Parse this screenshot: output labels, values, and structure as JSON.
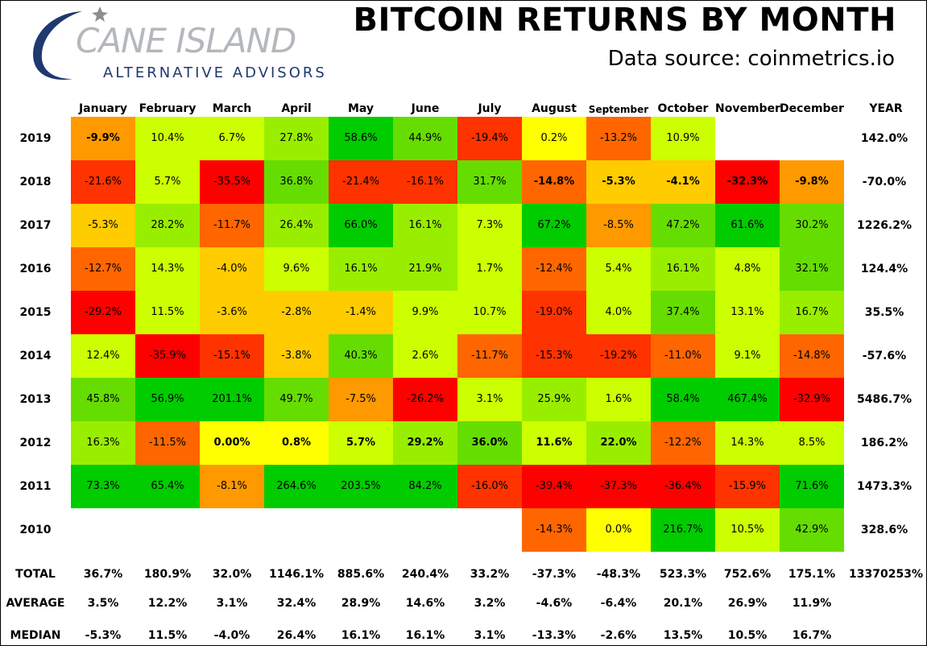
{
  "logo": {
    "name": "CANE ISLAND",
    "tagline": "ALTERNATIVE ADVISORS"
  },
  "title": "BITCOIN RETURNS BY MONTH",
  "subtitle": "Data source: coinmetrics.io",
  "chart_data": {
    "type": "heatmap",
    "columns": [
      "January",
      "February",
      "March",
      "April",
      "May",
      "June",
      "July",
      "August",
      "September",
      "October",
      "November",
      "December"
    ],
    "year_header": "YEAR",
    "rows": [
      {
        "label": "2019",
        "cells": [
          "-9.9%",
          "10.4%",
          "6.7%",
          "27.8%",
          "58.6%",
          "44.9%",
          "-19.4%",
          "0.2%",
          "-13.2%",
          "10.9%",
          null,
          null
        ],
        "values": [
          -9.9,
          10.4,
          6.7,
          27.8,
          58.6,
          44.9,
          -19.4,
          0.2,
          -13.2,
          10.9,
          null,
          null
        ],
        "bold": [
          true,
          false,
          false,
          false,
          false,
          false,
          false,
          false,
          false,
          false,
          false,
          false
        ],
        "year": "142.0%"
      },
      {
        "label": "2018",
        "cells": [
          "-21.6%",
          "5.7%",
          "-35.5%",
          "36.8%",
          "-21.4%",
          "-16.1%",
          "31.7%",
          "-14.8%",
          "-5.3%",
          "-4.1%",
          "-32.3%",
          "-9.8%"
        ],
        "values": [
          -21.6,
          5.7,
          -35.5,
          36.8,
          -21.4,
          -16.1,
          31.7,
          -14.8,
          -5.3,
          -4.1,
          -32.3,
          -9.8
        ],
        "bold": [
          false,
          false,
          false,
          false,
          false,
          false,
          false,
          true,
          true,
          true,
          true,
          true
        ],
        "year": "-70.0%"
      },
      {
        "label": "2017",
        "cells": [
          "-5.3%",
          "28.2%",
          "-11.7%",
          "26.4%",
          "66.0%",
          "16.1%",
          "7.3%",
          "67.2%",
          "-8.5%",
          "47.2%",
          "61.6%",
          "30.2%"
        ],
        "values": [
          -5.3,
          28.2,
          -11.7,
          26.4,
          66.0,
          16.1,
          7.3,
          67.2,
          -8.5,
          47.2,
          61.6,
          30.2
        ],
        "bold": [
          false,
          false,
          false,
          false,
          false,
          false,
          false,
          false,
          false,
          false,
          false,
          false
        ],
        "year": "1226.2%"
      },
      {
        "label": "2016",
        "cells": [
          "-12.7%",
          "14.3%",
          "-4.0%",
          "9.6%",
          "16.1%",
          "21.9%",
          "1.7%",
          "-12.4%",
          "5.4%",
          "16.1%",
          "4.8%",
          "32.1%"
        ],
        "values": [
          -12.7,
          14.3,
          -4.0,
          9.6,
          16.1,
          21.9,
          1.7,
          -12.4,
          5.4,
          16.1,
          4.8,
          32.1
        ],
        "bold": [
          false,
          false,
          false,
          false,
          false,
          false,
          false,
          false,
          false,
          false,
          false,
          false
        ],
        "year": "124.4%"
      },
      {
        "label": "2015",
        "cells": [
          "-29.2%",
          "11.5%",
          "-3.6%",
          "-2.8%",
          "-1.4%",
          "9.9%",
          "10.7%",
          "-19.0%",
          "4.0%",
          "37.4%",
          "13.1%",
          "16.7%"
        ],
        "values": [
          -29.2,
          11.5,
          -3.6,
          -2.8,
          -1.4,
          9.9,
          10.7,
          -19.0,
          4.0,
          37.4,
          13.1,
          16.7
        ],
        "bold": [
          false,
          false,
          false,
          false,
          false,
          false,
          false,
          false,
          false,
          false,
          false,
          false
        ],
        "year": "35.5%"
      },
      {
        "label": "2014",
        "cells": [
          "12.4%",
          "-35.9%",
          "-15.1%",
          "-3.8%",
          "40.3%",
          "2.6%",
          "-11.7%",
          "-15.3%",
          "-19.2%",
          "-11.0%",
          "9.1%",
          "-14.8%"
        ],
        "values": [
          12.4,
          -35.9,
          -15.1,
          -3.8,
          40.3,
          2.6,
          -11.7,
          -15.3,
          -19.2,
          -11.0,
          9.1,
          -14.8
        ],
        "bold": [
          false,
          false,
          false,
          false,
          false,
          false,
          false,
          false,
          false,
          false,
          false,
          false
        ],
        "year": "-57.6%"
      },
      {
        "label": "2013",
        "cells": [
          "45.8%",
          "56.9%",
          "201.1%",
          "49.7%",
          "-7.5%",
          "-26.2%",
          "3.1%",
          "25.9%",
          "1.6%",
          "58.4%",
          "467.4%",
          "-32.9%"
        ],
        "values": [
          45.8,
          56.9,
          201.1,
          49.7,
          -7.5,
          -26.2,
          3.1,
          25.9,
          1.6,
          58.4,
          467.4,
          -32.9
        ],
        "bold": [
          false,
          false,
          false,
          false,
          false,
          false,
          false,
          false,
          false,
          false,
          false,
          false
        ],
        "year": "5486.7%"
      },
      {
        "label": "2012",
        "cells": [
          "16.3%",
          "-11.5%",
          "0.00%",
          "0.8%",
          "5.7%",
          "29.2%",
          "36.0%",
          "11.6%",
          "22.0%",
          "-12.2%",
          "14.3%",
          "8.5%"
        ],
        "values": [
          16.3,
          -11.5,
          0.0,
          0.8,
          5.7,
          29.2,
          36.0,
          11.6,
          22.0,
          -12.2,
          14.3,
          8.5
        ],
        "bold": [
          false,
          false,
          true,
          true,
          true,
          true,
          true,
          true,
          true,
          false,
          false,
          false
        ],
        "year": "186.2%"
      },
      {
        "label": "2011",
        "cells": [
          "73.3%",
          "65.4%",
          "-8.1%",
          "264.6%",
          "203.5%",
          "84.2%",
          "-16.0%",
          "-39.4%",
          "-37.3%",
          "-36.4%",
          "-15.9%",
          "71.6%"
        ],
        "values": [
          73.3,
          65.4,
          -8.1,
          264.6,
          203.5,
          84.2,
          -16.0,
          -39.4,
          -37.3,
          -36.4,
          -15.9,
          71.6
        ],
        "bold": [
          false,
          false,
          false,
          false,
          false,
          false,
          false,
          false,
          false,
          false,
          false,
          false
        ],
        "year": "1473.3%"
      },
      {
        "label": "2010",
        "cells": [
          null,
          null,
          null,
          null,
          null,
          null,
          null,
          "-14.3%",
          "0.0%",
          "216.7%",
          "10.5%",
          "42.9%"
        ],
        "values": [
          null,
          null,
          null,
          null,
          null,
          null,
          null,
          -14.3,
          0.0,
          216.7,
          10.5,
          42.9
        ],
        "bold": [
          false,
          false,
          false,
          false,
          false,
          false,
          false,
          false,
          false,
          false,
          false,
          false
        ],
        "year": "328.6%"
      }
    ],
    "stats": [
      {
        "label": "TOTAL",
        "values": [
          "36.7%",
          "180.9%",
          "32.0%",
          "1146.1%",
          "885.6%",
          "240.4%",
          "33.2%",
          "-37.3%",
          "-48.3%",
          "523.3%",
          "752.6%",
          "175.1%"
        ],
        "year": "13370253%"
      },
      {
        "label": "AVERAGE",
        "values": [
          "3.5%",
          "12.2%",
          "3.1%",
          "32.4%",
          "28.9%",
          "14.6%",
          "3.2%",
          "-4.6%",
          "-6.4%",
          "20.1%",
          "26.9%",
          "11.9%"
        ],
        "year": ""
      },
      {
        "label": "MEDIAN",
        "values": [
          "-5.3%",
          "11.5%",
          "-4.0%",
          "26.4%",
          "16.1%",
          "16.1%",
          "3.1%",
          "-13.3%",
          "-2.6%",
          "13.5%",
          "10.5%",
          "16.7%"
        ],
        "year": ""
      }
    ],
    "colors": {
      "deep_red": "#ff0000",
      "red": "#ff3300",
      "orange_red": "#ff6600",
      "orange": "#ff9900",
      "amber": "#ffcc00",
      "yellow": "#ffff00",
      "yellow_green": "#ccff00",
      "light_green": "#99ee00",
      "green": "#66dd00",
      "deep_green": "#00cc00"
    }
  }
}
